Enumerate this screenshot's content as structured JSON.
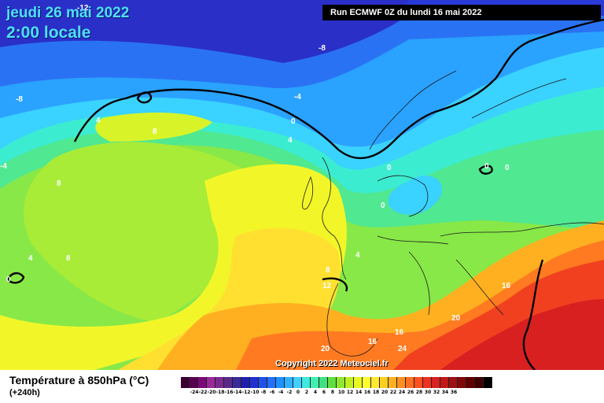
{
  "header": {
    "date_line": "jeudi 26 mai 2022",
    "hour_line": "2:00 locale",
    "run_line": "Run ECMWF 0Z du lundi 16 mai 2022"
  },
  "footer": {
    "variable": "Température à 850hPa (°C)",
    "lead_time": "(+240h)",
    "copyright": "Copyright 2022 Meteociel.fr"
  },
  "scale": {
    "colors": [
      "#3a0032",
      "#5a0050",
      "#7a0a7a",
      "#9a2a9a",
      "#7a2a90",
      "#5a2a8a",
      "#3a2a9a",
      "#2020b0",
      "#2030d0",
      "#2050e8",
      "#2070f8",
      "#2090ff",
      "#30b0ff",
      "#40d0ff",
      "#40e8e0",
      "#40f0b0",
      "#40e080",
      "#60e040",
      "#90e830",
      "#c0f020",
      "#e8f820",
      "#ffff30",
      "#ffe830",
      "#ffd020",
      "#ffb020",
      "#ff9020",
      "#ff7020",
      "#ff5020",
      "#f03020",
      "#d82020",
      "#c01818",
      "#a01010",
      "#800808",
      "#600000",
      "#400000",
      "#000000"
    ],
    "labels": [
      "-24",
      "-22",
      "-20",
      "-18",
      "-16",
      "-14",
      "-12",
      "-10",
      "-8",
      "-6",
      "-4",
      "-2",
      "0",
      "2",
      "4",
      "6",
      "8",
      "10",
      "12",
      "14",
      "16",
      "18",
      "20",
      "22",
      "24",
      "26",
      "28",
      "30",
      "32",
      "34",
      "36"
    ]
  },
  "isotherm_labels": [
    {
      "text": "-12",
      "color": "#ffffff"
    },
    {
      "text": "-8",
      "color": "#ffffff"
    },
    {
      "text": "-8",
      "color": "#ffffff"
    },
    {
      "text": "-4",
      "color": "#ffffff"
    },
    {
      "text": "-4",
      "color": "#ffffff"
    },
    {
      "text": "0",
      "color": "#ffffff"
    },
    {
      "text": "4",
      "color": "#ffffff"
    },
    {
      "text": "4",
      "color": "#ffffff"
    },
    {
      "text": "8",
      "color": "#ffffff"
    },
    {
      "text": "8",
      "color": "#ffffff"
    },
    {
      "text": "4",
      "color": "#ffffff"
    },
    {
      "text": "8",
      "color": "#ffffff"
    },
    {
      "text": "0",
      "color": "#ffffff"
    },
    {
      "text": "0",
      "color": "#ffffff"
    },
    {
      "text": "0",
      "color": "#ffffff"
    },
    {
      "text": "0",
      "color": "#ffffff"
    },
    {
      "text": "0",
      "color": "#ffffff"
    },
    {
      "text": "4",
      "color": "#ffffff"
    },
    {
      "text": "8",
      "color": "#ffffff"
    },
    {
      "text": "12",
      "color": "#ffffff"
    },
    {
      "text": "16",
      "color": "#ffffff"
    },
    {
      "text": "16",
      "color": "#ffffff"
    },
    {
      "text": "16",
      "color": "#ffffff"
    },
    {
      "text": "20",
      "color": "#ffffff"
    },
    {
      "text": "20",
      "color": "#ffffff"
    },
    {
      "text": "24",
      "color": "#ffffff"
    },
    {
      "text": "4",
      "color": "#ffffff"
    }
  ]
}
